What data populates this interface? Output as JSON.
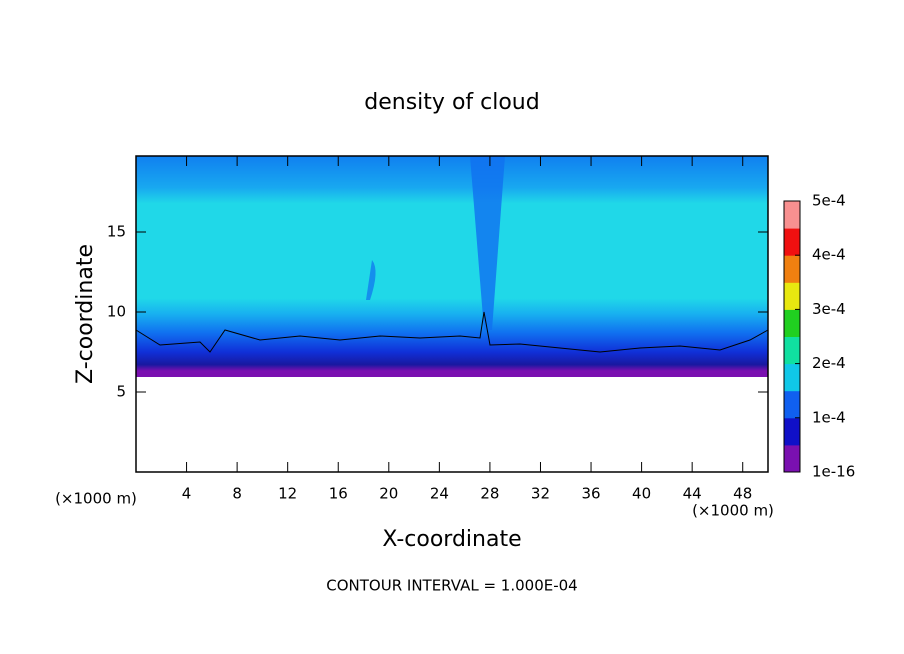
{
  "chart_data": {
    "type": "contour",
    "title": "density of cloud",
    "x_label": "X-coordinate",
    "y_label": "Z-coordinate",
    "x_unit": "(×1000 m)",
    "annotation": "CONTOUR INTERVAL = 1.000E-04",
    "xlim": [
      0,
      50
    ],
    "xticks": [
      4,
      8,
      12,
      16,
      20,
      24,
      28,
      32,
      36,
      40,
      44,
      48
    ],
    "ylim": [
      0,
      19.75
    ],
    "yticks": [
      5,
      10,
      15
    ],
    "clim": [
      0,
      0.0005
    ],
    "cticks": [
      1e-16,
      {
        "value": 0.0001,
        "label": "1e-4"
      },
      {
        "value": 0.0002,
        "label": "2e-4"
      },
      {
        "value": 0.0003,
        "label": "3e-4"
      },
      {
        "value": 0.0004,
        "label": "4e-4"
      },
      {
        "value": 0.0005,
        "label": "5e-4"
      }
    ],
    "colorbar_colors": [
      "#7a10b0",
      "#1010c8",
      "#1060f0",
      "#10c8e8",
      "#10e0a0",
      "#20d020",
      "#e8e810",
      "#f08010",
      "#f01010",
      "#f89090"
    ]
  }
}
